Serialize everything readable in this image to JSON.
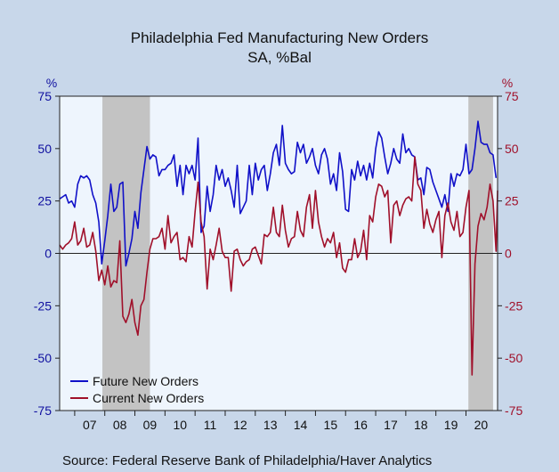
{
  "chart_data": {
    "type": "line",
    "title": "Philadelphia Fed Manufacturing New Orders",
    "subtitle": "SA, %Bal",
    "yunit_left": "%",
    "yunit_right": "%",
    "ylim": [
      -75,
      75
    ],
    "yticks": [
      75,
      50,
      25,
      0,
      -25,
      -50,
      -75
    ],
    "ytick_labels": [
      "75",
      "50",
      "25",
      "0",
      "-25",
      "-50",
      "-75"
    ],
    "xlim": [
      2006.5,
      2021.05
    ],
    "xtick_labels": [
      "07",
      "08",
      "09",
      "10",
      "11",
      "12",
      "13",
      "14",
      "15",
      "16",
      "17",
      "18",
      "19",
      "20"
    ],
    "xtick_positions": [
      2007,
      2008,
      2009,
      2010,
      2011,
      2012,
      2013,
      2014,
      2015,
      2016,
      2017,
      2018,
      2019,
      2020
    ],
    "recessions": [
      [
        2007.92,
        2009.5
      ],
      [
        2020.08,
        2020.9
      ]
    ],
    "legend_position": "bottom-left",
    "colors": {
      "future": "#1010c8",
      "current": "#a0102a",
      "left_axis": "#1010a0",
      "right_axis": "#a0102a",
      "plot_bg": "#eef5fd",
      "recession": "#c3c3c3"
    },
    "series": [
      {
        "name": "Future New Orders",
        "color": "#1010c8",
        "points": [
          [
            2006.5,
            26
          ],
          [
            2006.6,
            27
          ],
          [
            2006.7,
            28
          ],
          [
            2006.8,
            24
          ],
          [
            2006.9,
            25
          ],
          [
            2007.0,
            22
          ],
          [
            2007.1,
            33
          ],
          [
            2007.2,
            37
          ],
          [
            2007.3,
            36
          ],
          [
            2007.4,
            37
          ],
          [
            2007.5,
            35
          ],
          [
            2007.6,
            28
          ],
          [
            2007.7,
            24
          ],
          [
            2007.8,
            15
          ],
          [
            2007.9,
            -5
          ],
          [
            2008.0,
            6
          ],
          [
            2008.1,
            18
          ],
          [
            2008.2,
            33
          ],
          [
            2008.3,
            20
          ],
          [
            2008.4,
            22
          ],
          [
            2008.5,
            33
          ],
          [
            2008.6,
            34
          ],
          [
            2008.7,
            -6
          ],
          [
            2008.8,
            0
          ],
          [
            2008.9,
            7
          ],
          [
            2009.0,
            20
          ],
          [
            2009.1,
            12
          ],
          [
            2009.2,
            29
          ],
          [
            2009.3,
            40
          ],
          [
            2009.4,
            51
          ],
          [
            2009.5,
            45
          ],
          [
            2009.6,
            47
          ],
          [
            2009.7,
            46
          ],
          [
            2009.8,
            37
          ],
          [
            2009.9,
            40
          ],
          [
            2010.0,
            40
          ],
          [
            2010.1,
            42
          ],
          [
            2010.2,
            43
          ],
          [
            2010.3,
            47
          ],
          [
            2010.4,
            32
          ],
          [
            2010.5,
            42
          ],
          [
            2010.6,
            28
          ],
          [
            2010.7,
            42
          ],
          [
            2010.8,
            38
          ],
          [
            2010.9,
            42
          ],
          [
            2011.0,
            35
          ],
          [
            2011.1,
            55
          ],
          [
            2011.2,
            10
          ],
          [
            2011.3,
            13
          ],
          [
            2011.4,
            32
          ],
          [
            2011.5,
            20
          ],
          [
            2011.6,
            28
          ],
          [
            2011.7,
            42
          ],
          [
            2011.8,
            35
          ],
          [
            2011.9,
            40
          ],
          [
            2012.0,
            32
          ],
          [
            2012.1,
            36
          ],
          [
            2012.2,
            30
          ],
          [
            2012.3,
            22
          ],
          [
            2012.4,
            42
          ],
          [
            2012.5,
            19
          ],
          [
            2012.6,
            22
          ],
          [
            2012.7,
            25
          ],
          [
            2012.8,
            42
          ],
          [
            2012.9,
            28
          ],
          [
            2013.0,
            43
          ],
          [
            2013.1,
            35
          ],
          [
            2013.2,
            40
          ],
          [
            2013.3,
            42
          ],
          [
            2013.4,
            30
          ],
          [
            2013.5,
            38
          ],
          [
            2013.6,
            48
          ],
          [
            2013.7,
            52
          ],
          [
            2013.8,
            42
          ],
          [
            2013.9,
            61
          ],
          [
            2014.0,
            43
          ],
          [
            2014.1,
            40
          ],
          [
            2014.2,
            38
          ],
          [
            2014.3,
            39
          ],
          [
            2014.4,
            53
          ],
          [
            2014.5,
            48
          ],
          [
            2014.6,
            52
          ],
          [
            2014.7,
            43
          ],
          [
            2014.8,
            46
          ],
          [
            2014.9,
            50
          ],
          [
            2015.0,
            42
          ],
          [
            2015.1,
            38
          ],
          [
            2015.2,
            47
          ],
          [
            2015.3,
            50
          ],
          [
            2015.4,
            45
          ],
          [
            2015.5,
            33
          ],
          [
            2015.6,
            38
          ],
          [
            2015.7,
            30
          ],
          [
            2015.8,
            48
          ],
          [
            2015.9,
            39
          ],
          [
            2016.0,
            21
          ],
          [
            2016.1,
            20
          ],
          [
            2016.2,
            40
          ],
          [
            2016.3,
            35
          ],
          [
            2016.4,
            44
          ],
          [
            2016.5,
            37
          ],
          [
            2016.6,
            42
          ],
          [
            2016.7,
            35
          ],
          [
            2016.8,
            43
          ],
          [
            2016.9,
            36
          ],
          [
            2017.0,
            50
          ],
          [
            2017.1,
            58
          ],
          [
            2017.2,
            55
          ],
          [
            2017.3,
            46
          ],
          [
            2017.4,
            38
          ],
          [
            2017.5,
            43
          ],
          [
            2017.6,
            50
          ],
          [
            2017.7,
            45
          ],
          [
            2017.8,
            43
          ],
          [
            2017.9,
            57
          ],
          [
            2018.0,
            48
          ],
          [
            2018.1,
            50
          ],
          [
            2018.2,
            47
          ],
          [
            2018.3,
            46
          ],
          [
            2018.4,
            35
          ],
          [
            2018.5,
            36
          ],
          [
            2018.6,
            28
          ],
          [
            2018.7,
            41
          ],
          [
            2018.8,
            40
          ],
          [
            2018.9,
            34
          ],
          [
            2019.0,
            30
          ],
          [
            2019.1,
            26
          ],
          [
            2019.2,
            22
          ],
          [
            2019.3,
            28
          ],
          [
            2019.4,
            20
          ],
          [
            2019.5,
            38
          ],
          [
            2019.6,
            32
          ],
          [
            2019.7,
            38
          ],
          [
            2019.8,
            37
          ],
          [
            2019.9,
            40
          ],
          [
            2020.0,
            52
          ],
          [
            2020.1,
            38
          ],
          [
            2020.2,
            40
          ],
          [
            2020.3,
            50
          ],
          [
            2020.4,
            63
          ],
          [
            2020.5,
            53
          ],
          [
            2020.6,
            52
          ],
          [
            2020.7,
            52
          ],
          [
            2020.8,
            48
          ],
          [
            2020.9,
            47
          ],
          [
            2021.0,
            36
          ]
        ]
      },
      {
        "name": "Current New Orders",
        "color": "#a0102a",
        "points": [
          [
            2006.5,
            4
          ],
          [
            2006.6,
            2
          ],
          [
            2006.7,
            4
          ],
          [
            2006.8,
            5
          ],
          [
            2006.9,
            7
          ],
          [
            2007.0,
            15
          ],
          [
            2007.1,
            4
          ],
          [
            2007.2,
            6
          ],
          [
            2007.3,
            12
          ],
          [
            2007.4,
            3
          ],
          [
            2007.5,
            4
          ],
          [
            2007.6,
            10
          ],
          [
            2007.7,
            1
          ],
          [
            2007.8,
            -13
          ],
          [
            2007.9,
            -8
          ],
          [
            2008.0,
            -15
          ],
          [
            2008.1,
            -6
          ],
          [
            2008.2,
            -16
          ],
          [
            2008.3,
            -13
          ],
          [
            2008.4,
            -14
          ],
          [
            2008.5,
            6
          ],
          [
            2008.6,
            -30
          ],
          [
            2008.7,
            -33
          ],
          [
            2008.8,
            -29
          ],
          [
            2008.9,
            -22
          ],
          [
            2009.0,
            -33
          ],
          [
            2009.1,
            -39
          ],
          [
            2009.2,
            -25
          ],
          [
            2009.3,
            -22
          ],
          [
            2009.4,
            -9
          ],
          [
            2009.5,
            2
          ],
          [
            2009.6,
            7
          ],
          [
            2009.7,
            7
          ],
          [
            2009.8,
            8
          ],
          [
            2009.9,
            12
          ],
          [
            2010.0,
            2
          ],
          [
            2010.1,
            18
          ],
          [
            2010.2,
            5
          ],
          [
            2010.3,
            8
          ],
          [
            2010.4,
            10
          ],
          [
            2010.5,
            -3
          ],
          [
            2010.6,
            -2
          ],
          [
            2010.7,
            -4
          ],
          [
            2010.8,
            8
          ],
          [
            2010.9,
            3
          ],
          [
            2011.0,
            20
          ],
          [
            2011.1,
            34
          ],
          [
            2011.2,
            15
          ],
          [
            2011.3,
            8
          ],
          [
            2011.4,
            -17
          ],
          [
            2011.5,
            2
          ],
          [
            2011.6,
            -3
          ],
          [
            2011.7,
            4
          ],
          [
            2011.8,
            12
          ],
          [
            2011.9,
            1
          ],
          [
            2012.0,
            -2
          ],
          [
            2012.1,
            -2
          ],
          [
            2012.2,
            -18
          ],
          [
            2012.3,
            1
          ],
          [
            2012.4,
            2
          ],
          [
            2012.5,
            -3
          ],
          [
            2012.6,
            -6
          ],
          [
            2012.7,
            -4
          ],
          [
            2012.8,
            -3
          ],
          [
            2012.9,
            2
          ],
          [
            2013.0,
            3
          ],
          [
            2013.1,
            -1
          ],
          [
            2013.2,
            -5
          ],
          [
            2013.3,
            9
          ],
          [
            2013.4,
            8
          ],
          [
            2013.5,
            10
          ],
          [
            2013.6,
            22
          ],
          [
            2013.7,
            10
          ],
          [
            2013.8,
            8
          ],
          [
            2013.9,
            23
          ],
          [
            2014.0,
            11
          ],
          [
            2014.1,
            3
          ],
          [
            2014.2,
            7
          ],
          [
            2014.3,
            8
          ],
          [
            2014.4,
            20
          ],
          [
            2014.5,
            11
          ],
          [
            2014.6,
            8
          ],
          [
            2014.7,
            22
          ],
          [
            2014.8,
            28
          ],
          [
            2014.9,
            12
          ],
          [
            2015.0,
            30
          ],
          [
            2015.1,
            15
          ],
          [
            2015.2,
            8
          ],
          [
            2015.3,
            3
          ],
          [
            2015.4,
            7
          ],
          [
            2015.5,
            5
          ],
          [
            2015.6,
            10
          ],
          [
            2015.7,
            -2
          ],
          [
            2015.8,
            5
          ],
          [
            2015.9,
            -7
          ],
          [
            2016.0,
            -9
          ],
          [
            2016.1,
            -3
          ],
          [
            2016.2,
            -3
          ],
          [
            2016.3,
            7
          ],
          [
            2016.4,
            -2
          ],
          [
            2016.5,
            1
          ],
          [
            2016.6,
            11
          ],
          [
            2016.7,
            -3
          ],
          [
            2016.8,
            18
          ],
          [
            2016.9,
            15
          ],
          [
            2017.0,
            27
          ],
          [
            2017.1,
            33
          ],
          [
            2017.2,
            32
          ],
          [
            2017.3,
            27
          ],
          [
            2017.4,
            30
          ],
          [
            2017.5,
            5
          ],
          [
            2017.6,
            23
          ],
          [
            2017.7,
            25
          ],
          [
            2017.8,
            18
          ],
          [
            2017.9,
            23
          ],
          [
            2018.0,
            26
          ],
          [
            2018.1,
            27
          ],
          [
            2018.2,
            25
          ],
          [
            2018.3,
            46
          ],
          [
            2018.4,
            33
          ],
          [
            2018.5,
            30
          ],
          [
            2018.6,
            12
          ],
          [
            2018.7,
            21
          ],
          [
            2018.8,
            14
          ],
          [
            2018.9,
            10
          ],
          [
            2019.0,
            16
          ],
          [
            2019.1,
            20
          ],
          [
            2019.2,
            -2
          ],
          [
            2019.3,
            18
          ],
          [
            2019.4,
            24
          ],
          [
            2019.5,
            15
          ],
          [
            2019.6,
            11
          ],
          [
            2019.7,
            20
          ],
          [
            2019.8,
            8
          ],
          [
            2019.9,
            10
          ],
          [
            2020.0,
            22
          ],
          [
            2020.1,
            30
          ],
          [
            2020.2,
            -58
          ],
          [
            2020.3,
            -5
          ],
          [
            2020.4,
            13
          ],
          [
            2020.5,
            19
          ],
          [
            2020.6,
            16
          ],
          [
            2020.7,
            22
          ],
          [
            2020.8,
            33
          ],
          [
            2020.9,
            25
          ],
          [
            2021.0,
            1
          ],
          [
            2021.05,
            30
          ]
        ]
      }
    ],
    "source": "Source:   Federal Reserve Bank of Philadelphia/Haver Analytics"
  }
}
